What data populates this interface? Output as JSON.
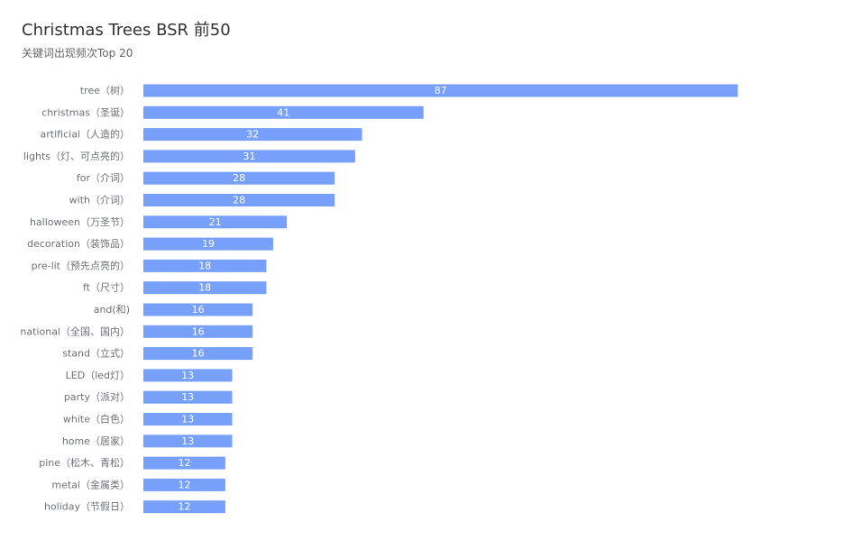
{
  "chart_data": {
    "type": "bar",
    "orientation": "horizontal",
    "title": "Christmas Trees BSR  前50",
    "subtitle": "关键词出现频次Top 20",
    "xlabel": "",
    "ylabel": "",
    "xlim": [
      0,
      90
    ],
    "grid": false,
    "legend": "none",
    "bar_color": "#76a0f9",
    "label_color": "#6e7079",
    "value_label_color": "#ffffff",
    "categories": [
      "tree（树）",
      "christmas（圣诞）",
      "artificial（人造的）",
      "lights（灯、可点亮的）",
      "for（介词）",
      "with（介词）",
      "halloween（万圣节）",
      "decoration（装饰品）",
      "pre-lit（预先点亮的）",
      "ft（尺寸）",
      "and(和)",
      "national（全国、国内）",
      "stand（立式）",
      "LED（led灯）",
      "party（派对）",
      "white（白色）",
      "home（居家）",
      "pine（松木、青松）",
      "metal（金属类）",
      "holiday（节假日）"
    ],
    "values": [
      87,
      41,
      32,
      31,
      28,
      28,
      21,
      19,
      18,
      18,
      16,
      16,
      16,
      13,
      13,
      13,
      13,
      12,
      12,
      12
    ]
  }
}
